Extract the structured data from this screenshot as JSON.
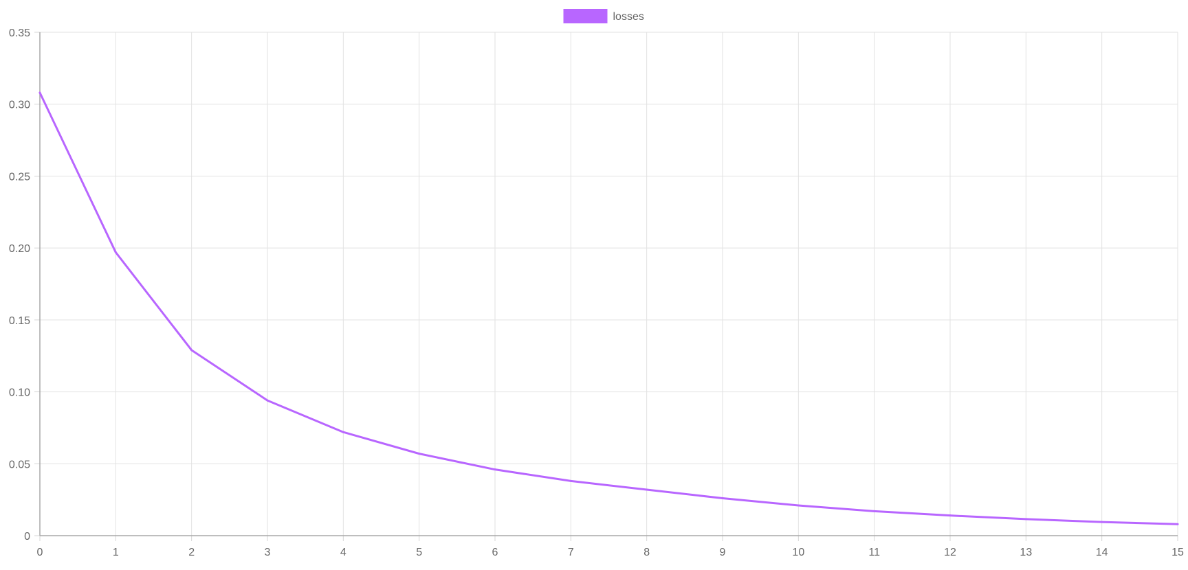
{
  "chart_data": {
    "type": "line",
    "title": "",
    "xlabel": "",
    "ylabel": "",
    "x": [
      0,
      1,
      2,
      3,
      4,
      5,
      6,
      7,
      8,
      9,
      10,
      11,
      12,
      13,
      14,
      15
    ],
    "xlim": [
      0,
      15
    ],
    "ylim": [
      0,
      0.35
    ],
    "yticks": [
      0,
      0.05,
      0.1,
      0.15,
      0.2,
      0.25,
      0.3,
      0.35
    ],
    "ytick_labels": [
      "0",
      "0.05",
      "0.10",
      "0.15",
      "0.20",
      "0.25",
      "0.30",
      "0.35"
    ],
    "xtick_labels": [
      "0",
      "1",
      "2",
      "3",
      "4",
      "5",
      "6",
      "7",
      "8",
      "9",
      "10",
      "11",
      "12",
      "13",
      "14",
      "15"
    ],
    "grid": true,
    "legend_position": "top-center",
    "series": [
      {
        "name": "losses",
        "color": "#b866ff",
        "values": [
          0.308,
          0.197,
          0.129,
          0.094,
          0.072,
          0.057,
          0.046,
          0.038,
          0.032,
          0.026,
          0.021,
          0.017,
          0.014,
          0.0115,
          0.0095,
          0.008
        ]
      }
    ]
  }
}
